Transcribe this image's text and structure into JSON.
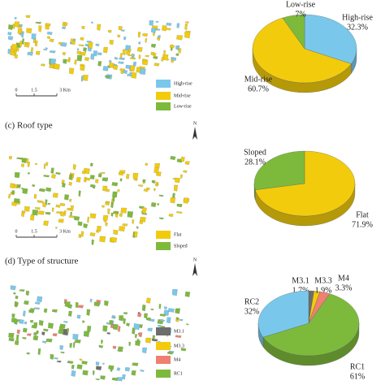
{
  "chart_data": [
    {
      "type": "pie",
      "categories": [
        "High-rise",
        "Mid-rise",
        "Low-rise"
      ],
      "values": [
        32.3,
        60.7,
        7
      ],
      "value_labels": [
        "32.3%",
        "60.7%",
        "7%"
      ],
      "colors": [
        "#79c8ec",
        "#f2cc0c",
        "#7dba3c"
      ]
    },
    {
      "type": "pie",
      "title": "(c) Roof type",
      "categories": [
        "Flat",
        "Sloped"
      ],
      "values": [
        71.9,
        28.1
      ],
      "value_labels": [
        "71.9%",
        "28.1%"
      ],
      "colors": [
        "#f2cc0c",
        "#7dba3c"
      ]
    },
    {
      "type": "pie",
      "title": "(d) Type of structure",
      "categories": [
        "M3.1",
        "M3.3",
        "M4",
        "RC1",
        "RC2"
      ],
      "values": [
        1.7,
        1.9,
        3.3,
        61,
        32
      ],
      "value_labels": [
        "1.7%",
        "1.9%",
        "3.3%",
        "61%",
        "32%"
      ],
      "colors": [
        "#6d6d6d",
        "#f2cc0c",
        "#f08070",
        "#7dba3c",
        "#79c8ec"
      ]
    }
  ],
  "maps": [
    {
      "scale": [
        "0",
        "1.5",
        "3 Km"
      ]
    },
    {
      "north": "N",
      "scale": [
        "0",
        "1.5",
        "3 Km"
      ]
    },
    {
      "north": "N"
    }
  ]
}
